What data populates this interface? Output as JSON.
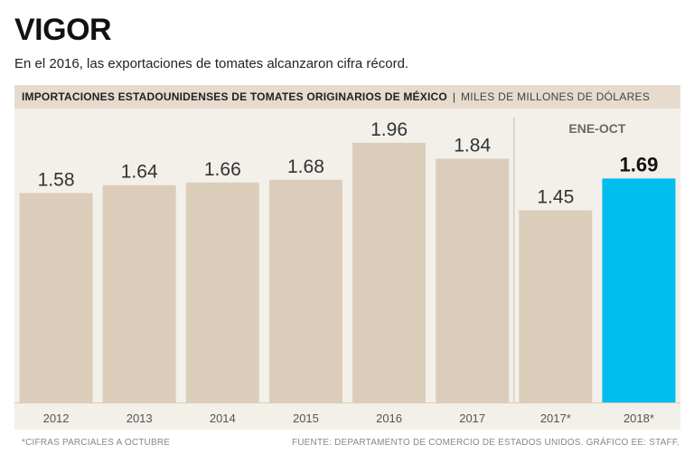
{
  "header": {
    "title": "VIGOR",
    "subtitle": "En el 2016, las exportaciones de tomates alcanzaron cifra récord."
  },
  "chart_header": {
    "main": "IMPORTACIONES ESTADOUNIDENSES DE TOMATES ORIGINARIOS DE MÉXICO",
    "separator": "|",
    "unit": "MILES DE MILLONES DE DÓLARES"
  },
  "footer": {
    "note": "*CIFRAS PARCIALES A OCTUBRE",
    "source": "FUENTE: DEPARTAMENTO DE COMERCIO DE ESTADOS UNIDOS. GRÁFICO EE: STAFF."
  },
  "colors": {
    "bar": "#dccdbb",
    "highlight": "#00bef0",
    "panel": "#f3efe9",
    "label": "#333333",
    "tick": "#555555",
    "divider": "#c9beb0",
    "section_label": "#6a6a6a"
  },
  "chart_data": {
    "type": "bar",
    "title": "IMPORTACIONES ESTADOUNIDENSES DE TOMATES ORIGINARIOS DE MÉXICO",
    "ylabel": "MILES DE MILLONES DE DÓLARES",
    "xlabel": "",
    "categories": [
      "2012",
      "2013",
      "2014",
      "2015",
      "2016",
      "2017",
      "2017*",
      "2018*"
    ],
    "values": [
      1.58,
      1.64,
      1.66,
      1.68,
      1.96,
      1.84,
      1.45,
      1.69
    ],
    "value_labels": [
      "1.58",
      "1.64",
      "1.66",
      "1.68",
      "1.96",
      "1.84",
      "1.45",
      "1.69"
    ],
    "highlight_index": 7,
    "ylim": [
      0,
      2.15
    ],
    "grid": false,
    "section_label": "ENE-OCT",
    "section_start_index": 6
  }
}
